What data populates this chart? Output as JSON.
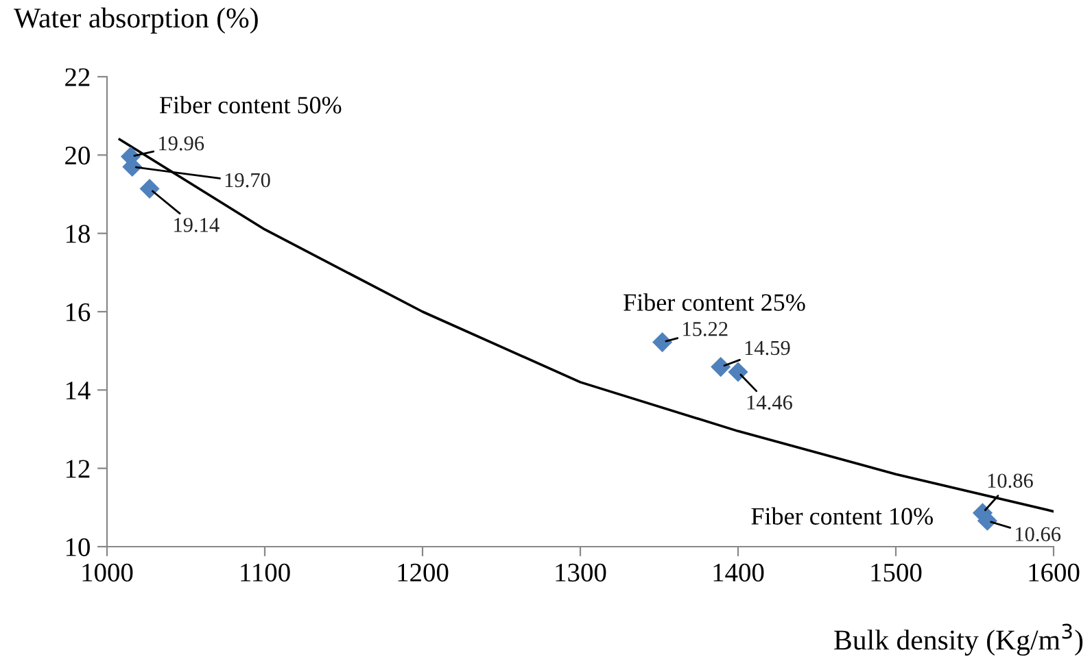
{
  "chart_data": {
    "type": "scatter",
    "xlabel": "Bulk density (Kg/m$^{3}$)",
    "ylabel": "Water absorption (%)",
    "xlim": [
      1000,
      1600
    ],
    "xticks": [
      1000,
      1100,
      1200,
      1300,
      1400,
      1500,
      1600
    ],
    "ylim": [
      10,
      22
    ],
    "yticks": [
      10,
      12,
      14,
      16,
      18,
      20,
      22
    ],
    "grid": false,
    "series": [
      {
        "type": "scatter",
        "color": "#4f81bd",
        "marker": "diamond",
        "x": [
          1015,
          1016,
          1027,
          1352,
          1389,
          1400,
          1555,
          1558
        ],
        "values": [
          19.96,
          19.7,
          19.14,
          15.22,
          14.59,
          14.46,
          10.86,
          10.66
        ],
        "value_labels": [
          "19.96",
          "19.70",
          "19.14",
          "15.22",
          "14.59",
          "14.46",
          "10.86",
          "10.66"
        ]
      },
      {
        "type": "line",
        "color": "#000000",
        "line_style": "solid",
        "marker": "none",
        "x": [
          1008,
          1100,
          1200,
          1300,
          1400,
          1500,
          1600
        ],
        "values": [
          20.4,
          18.1,
          16.0,
          14.2,
          12.95,
          11.85,
          10.9
        ]
      }
    ],
    "annotations": [
      "Fiber content 50%",
      "Fiber content 25%",
      "Fiber content 10%"
    ]
  }
}
